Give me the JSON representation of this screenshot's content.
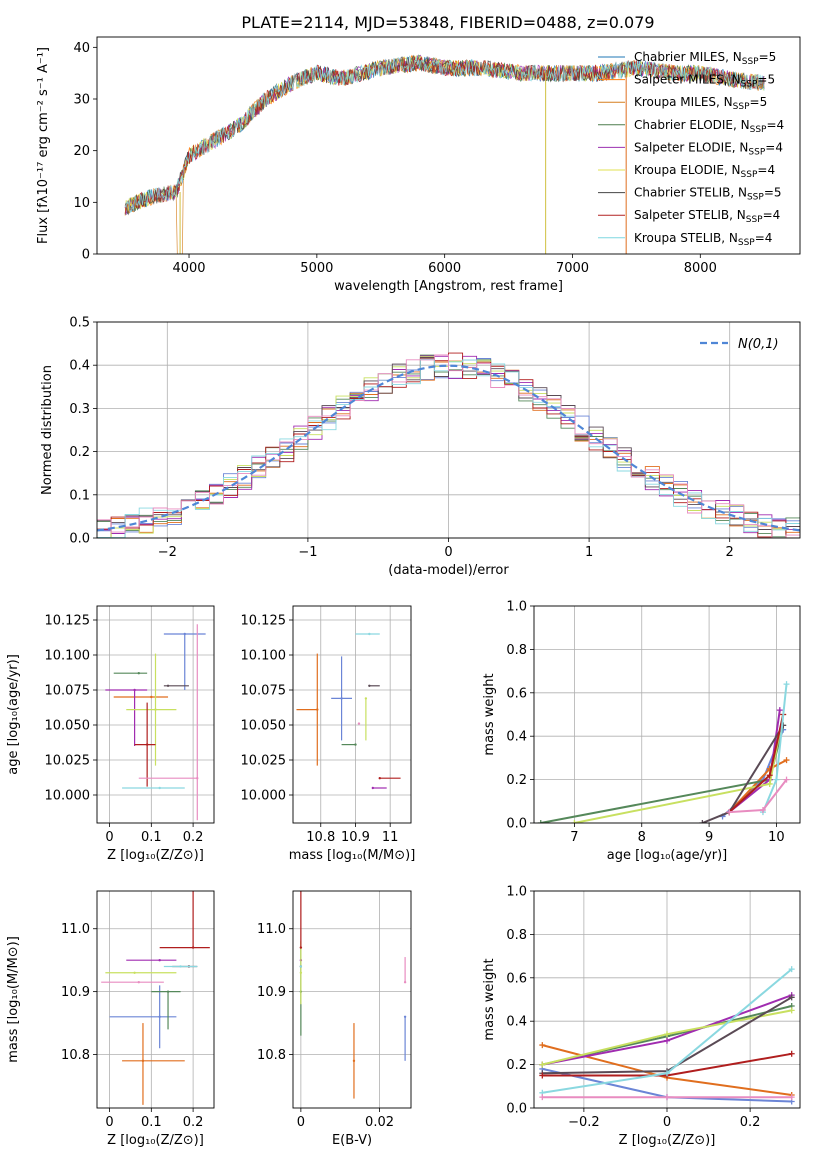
{
  "figure_title": "PLATE=2114, MJD=53848, FIBERID=0488, z=0.079",
  "model_names": [
    "Chabrier MILES",
    "Salpeter MILES",
    "Kroupa MILES",
    "Chabrier ELODIE",
    "Salpeter ELODIE",
    "Kroupa ELODIE",
    "Chabrier STELIB",
    "Salpeter STELIB",
    "Kroupa STELIB"
  ],
  "model_nssp": [
    5,
    5,
    5,
    4,
    4,
    4,
    5,
    4,
    4
  ],
  "model_colors": [
    "#1f77b4",
    "#ff7f0e",
    "#d67f1e",
    "#4d7d4d",
    "#9b30b0",
    "#e0e050",
    "#444444",
    "#b22222",
    "#7fd7e0"
  ],
  "panel_colors": [
    "#6b85d6",
    "#e06e1e",
    "#55885a",
    "#a02cb0",
    "#c8e060",
    "#5a4a55",
    "#b01e1e",
    "#8ad8e0",
    "#e88cc0"
  ],
  "chart_data": [
    {
      "id": "spectrum",
      "type": "line",
      "title": "PLATE=2114, MJD=53848, FIBERID=0488, z=0.079",
      "xlabel": "wavelength [Angstrom, rest frame]",
      "ylabel": "Flux [fλ10⁻¹⁷ erg cm⁻² s⁻¹ A⁻¹]",
      "xlim": [
        3280,
        8780
      ],
      "ylim": [
        0,
        42
      ],
      "xticks": [
        4000,
        5000,
        6000,
        7000,
        8000
      ],
      "yticks": [
        0,
        10,
        20,
        30,
        40
      ],
      "legend": "top-right",
      "continuum": [
        [
          3500,
          9
        ],
        [
          3700,
          11
        ],
        [
          3900,
          12
        ],
        [
          4000,
          19
        ],
        [
          4200,
          22
        ],
        [
          4400,
          25
        ],
        [
          4600,
          30
        ],
        [
          4800,
          33
        ],
        [
          5000,
          35
        ],
        [
          5200,
          34
        ],
        [
          5500,
          36
        ],
        [
          5800,
          37
        ],
        [
          6000,
          36
        ],
        [
          6300,
          36
        ],
        [
          6600,
          35
        ],
        [
          6800,
          35
        ],
        [
          7000,
          35
        ],
        [
          7200,
          35
        ],
        [
          7500,
          36
        ],
        [
          7800,
          35
        ],
        [
          8000,
          35
        ],
        [
          8200,
          34
        ],
        [
          8500,
          33
        ]
      ]
    },
    {
      "id": "residuals",
      "type": "histogram",
      "xlabel": "(data-model)/error",
      "ylabel": "Normed distribution",
      "xlim": [
        -2.5,
        2.5
      ],
      "ylim": [
        0,
        0.5
      ],
      "xticks": [
        -2,
        -1,
        0,
        1,
        2
      ],
      "yticks": [
        0.0,
        0.1,
        0.2,
        0.3,
        0.4,
        0.5
      ],
      "grid": true,
      "legend": "top-right",
      "legend_label": "N(0,1)",
      "bin_width": 0.1,
      "reference_curve": "gaussian mean 0 sigma 1"
    },
    {
      "id": "age_vs_Z",
      "type": "scatter",
      "xlabel": "Z [log₁₀(Z/Z⊙)]",
      "ylabel": "age  [log₁₀(age/yr)]",
      "xlim": [
        -0.03,
        0.25
      ],
      "ylim": [
        9.98,
        10.135
      ],
      "xticks": [
        0.0,
        0.1,
        0.2
      ],
      "yticks": [
        10.0,
        10.025,
        10.05,
        10.075,
        10.1,
        10.125
      ],
      "grid": true,
      "points": [
        {
          "x": 0.18,
          "y": 10.115,
          "xerr": [
            0.05,
            0.05
          ],
          "yerr": [
            0.04,
            0.0
          ]
        },
        {
          "x": 0.1,
          "y": 10.07,
          "xerr": [
            0.09,
            0.04
          ],
          "yerr": [
            0.0,
            0.0
          ]
        },
        {
          "x": 0.07,
          "y": 10.087,
          "xerr": [
            0.06,
            0.02
          ],
          "yerr": [
            0.0,
            0.0
          ]
        },
        {
          "x": 0.06,
          "y": 10.075,
          "xerr": [
            0.07,
            0.03
          ],
          "yerr": [
            0.04,
            0.0
          ]
        },
        {
          "x": 0.11,
          "y": 10.061,
          "xerr": [
            0.07,
            0.05
          ],
          "yerr": [
            0.04,
            0.04
          ]
        },
        {
          "x": 0.14,
          "y": 10.078,
          "xerr": [
            0.01,
            0.05
          ],
          "yerr": [
            0.0,
            0.0
          ]
        },
        {
          "x": 0.09,
          "y": 10.036,
          "xerr": [
            0.03,
            0.02
          ],
          "yerr": [
            0.03,
            0.03
          ]
        },
        {
          "x": 0.12,
          "y": 10.005,
          "xerr": [
            0.09,
            0.06
          ],
          "yerr": [
            0.0,
            0.0
          ]
        },
        {
          "x": 0.21,
          "y": 10.012,
          "xerr": [
            0.14,
            0.0
          ],
          "yerr": [
            0.03,
            0.11
          ]
        }
      ]
    },
    {
      "id": "age_vs_mass",
      "type": "scatter",
      "xlabel": "mass [log₁₀(M/M⊙)]",
      "ylabel": "",
      "xlim": [
        10.72,
        11.06
      ],
      "ylim": [
        9.98,
        10.135
      ],
      "xticks": [
        10.8,
        10.9,
        11.0
      ],
      "yticks": [
        10.0,
        10.025,
        10.05,
        10.075,
        10.1,
        10.125
      ],
      "grid": true,
      "points": [
        {
          "x": 10.86,
          "y": 10.069,
          "xerr": [
            0.03,
            0.03
          ],
          "yerr": [
            0.03,
            0.03
          ]
        },
        {
          "x": 10.79,
          "y": 10.061,
          "xerr": [
            0.06,
            0.0
          ],
          "yerr": [
            0.04,
            0.04
          ]
        },
        {
          "x": 10.9,
          "y": 10.036,
          "xerr": [
            0.04,
            0.0
          ],
          "yerr": [
            0.0,
            0.0
          ]
        },
        {
          "x": 10.95,
          "y": 10.005,
          "xerr": [
            0.0,
            0.04
          ],
          "yerr": [
            0.0,
            0.0
          ]
        },
        {
          "x": 10.93,
          "y": 10.069,
          "xerr": [
            0.0,
            0.0
          ],
          "yerr": [
            0.03,
            0.0
          ]
        },
        {
          "x": 10.94,
          "y": 10.078,
          "xerr": [
            0.0,
            0.03
          ],
          "yerr": [
            0.0,
            0.0
          ]
        },
        {
          "x": 10.97,
          "y": 10.012,
          "xerr": [
            0.0,
            0.06
          ],
          "yerr": [
            0.0,
            0.0
          ]
        },
        {
          "x": 10.94,
          "y": 10.115,
          "xerr": [
            0.04,
            0.03
          ],
          "yerr": [
            0.0,
            0.0
          ]
        },
        {
          "x": 10.91,
          "y": 10.051,
          "xerr": [
            0.0,
            0.0
          ],
          "yerr": [
            0.0,
            0.0
          ]
        }
      ]
    },
    {
      "id": "mass_weight_vs_age",
      "type": "line",
      "xlabel": "age  [log₁₀(age/yr)]",
      "ylabel": "mass weight",
      "xlim": [
        6.4,
        10.35
      ],
      "ylim": [
        0,
        1
      ],
      "xticks": [
        7,
        8,
        9,
        10
      ],
      "yticks": [
        0.0,
        0.2,
        0.4,
        0.6,
        0.8,
        1.0
      ],
      "grid": true,
      "series": [
        {
          "x": [
            9.2,
            9.8,
            10.1
          ],
          "y": [
            0.03,
            0.2,
            0.43
          ]
        },
        {
          "x": [
            9.3,
            9.9,
            10.15
          ],
          "y": [
            0.05,
            0.25,
            0.29
          ]
        },
        {
          "x": [
            6.5,
            9.9,
            10.1
          ],
          "y": [
            0.0,
            0.2,
            0.45
          ]
        },
        {
          "x": [
            9.3,
            9.9,
            10.05
          ],
          "y": [
            0.05,
            0.2,
            0.52
          ]
        },
        {
          "x": [
            7.0,
            9.9,
            10.1
          ],
          "y": [
            0.0,
            0.18,
            0.5
          ]
        },
        {
          "x": [
            8.9,
            9.3,
            10.1
          ],
          "y": [
            0.0,
            0.05,
            0.45
          ]
        },
        {
          "x": [
            9.3,
            9.9,
            10.1
          ],
          "y": [
            0.05,
            0.22,
            0.5
          ]
        },
        {
          "x": [
            9.8,
            10.0,
            10.15
          ],
          "y": [
            0.05,
            0.2,
            0.64
          ]
        },
        {
          "x": [
            9.3,
            9.8,
            10.15
          ],
          "y": [
            0.05,
            0.06,
            0.2
          ]
        }
      ]
    },
    {
      "id": "mass_vs_Z",
      "type": "scatter",
      "xlabel": "Z [log₁₀(Z/Z⊙)]",
      "ylabel": "mass [log₁₀(M/M⊙)]",
      "xlim": [
        -0.03,
        0.25
      ],
      "ylim": [
        10.715,
        11.06
      ],
      "xticks": [
        0.0,
        0.1,
        0.2
      ],
      "yticks": [
        10.8,
        10.9,
        11.0
      ],
      "grid": true,
      "points": [
        {
          "x": 0.12,
          "y": 10.86,
          "xerr": [
            0.12,
            0.04
          ],
          "yerr": [
            0.05,
            0.05
          ]
        },
        {
          "x": 0.08,
          "y": 10.79,
          "xerr": [
            0.05,
            0.1
          ],
          "yerr": [
            0.07,
            0.06
          ]
        },
        {
          "x": 0.14,
          "y": 10.9,
          "xerr": [
            0.04,
            0.03
          ],
          "yerr": [
            0.06,
            0.0
          ]
        },
        {
          "x": 0.12,
          "y": 10.95,
          "xerr": [
            0.08,
            0.04
          ],
          "yerr": [
            0.0,
            0.0
          ]
        },
        {
          "x": 0.06,
          "y": 10.93,
          "xerr": [
            0.07,
            0.1
          ],
          "yerr": [
            0.0,
            0.0
          ]
        },
        {
          "x": 0.19,
          "y": 10.94,
          "xerr": [
            0.04,
            0.02
          ],
          "yerr": [
            0.0,
            0.0
          ]
        },
        {
          "x": 0.2,
          "y": 10.97,
          "xerr": [
            0.08,
            0.04
          ],
          "yerr": [
            0.0,
            0.09
          ]
        },
        {
          "x": 0.17,
          "y": 10.94,
          "xerr": [
            0.04,
            0.04
          ],
          "yerr": [
            0.0,
            0.0
          ]
        },
        {
          "x": 0.07,
          "y": 10.915,
          "xerr": [
            0.09,
            0.06
          ],
          "yerr": [
            0.0,
            0.0
          ]
        }
      ]
    },
    {
      "id": "mass_vs_EBV",
      "type": "scatter",
      "xlabel": "E(B-V)",
      "ylabel": "",
      "xlim": [
        -0.002,
        0.028
      ],
      "ylim": [
        10.715,
        11.06
      ],
      "xticks": [
        0.0,
        0.02
      ],
      "yticks": [
        10.8,
        10.9,
        11.0
      ],
      "grid": true,
      "points": [
        {
          "x": 0.0265,
          "y": 10.86,
          "xerr": [
            0,
            0
          ],
          "yerr": [
            0.07,
            0.0
          ]
        },
        {
          "x": 0.0135,
          "y": 10.79,
          "xerr": [
            0,
            0
          ],
          "yerr": [
            0.06,
            0.06
          ]
        },
        {
          "x": 0.0,
          "y": 10.9,
          "xerr": [
            0,
            0
          ],
          "yerr": [
            0.07,
            0.07
          ]
        },
        {
          "x": 0.0,
          "y": 10.95,
          "xerr": [
            0,
            0
          ],
          "yerr": [
            0.0,
            0.0
          ]
        },
        {
          "x": 0.0,
          "y": 10.93,
          "xerr": [
            0,
            0
          ],
          "yerr": [
            0.05,
            0.05
          ]
        },
        {
          "x": 0.0,
          "y": 10.94,
          "xerr": [
            0,
            0
          ],
          "yerr": [
            0.0,
            0.0
          ]
        },
        {
          "x": 0.0,
          "y": 10.97,
          "xerr": [
            0,
            0
          ],
          "yerr": [
            0.0,
            0.09
          ]
        },
        {
          "x": 0.0,
          "y": 10.94,
          "xerr": [
            0,
            0
          ],
          "yerr": [
            0.0,
            0.0
          ]
        },
        {
          "x": 0.0265,
          "y": 10.915,
          "xerr": [
            0,
            0
          ],
          "yerr": [
            0.0,
            0.04
          ]
        }
      ]
    },
    {
      "id": "mass_weight_vs_Z",
      "type": "line",
      "xlabel": "Z [log₁₀(Z/Z⊙)]",
      "ylabel": "mass weight",
      "xlim": [
        -0.32,
        0.32
      ],
      "ylim": [
        0,
        1
      ],
      "xticks": [
        -0.2,
        0.0,
        0.2
      ],
      "yticks": [
        0.0,
        0.2,
        0.4,
        0.6,
        0.8,
        1.0
      ],
      "grid": true,
      "series": [
        {
          "x": [
            -0.3,
            0.0,
            0.3
          ],
          "y": [
            0.18,
            0.05,
            0.03
          ]
        },
        {
          "x": [
            -0.3,
            0.0,
            0.3
          ],
          "y": [
            0.29,
            0.14,
            0.06
          ]
        },
        {
          "x": [
            -0.3,
            0.0,
            0.3
          ],
          "y": [
            0.2,
            0.33,
            0.47
          ]
        },
        {
          "x": [
            -0.3,
            0.0,
            0.3
          ],
          "y": [
            0.2,
            0.31,
            0.52
          ]
        },
        {
          "x": [
            -0.3,
            0.0,
            0.3
          ],
          "y": [
            0.2,
            0.34,
            0.45
          ]
        },
        {
          "x": [
            -0.3,
            0.0,
            0.3
          ],
          "y": [
            0.16,
            0.17,
            0.51
          ]
        },
        {
          "x": [
            -0.3,
            0.0,
            0.3
          ],
          "y": [
            0.15,
            0.15,
            0.25
          ]
        },
        {
          "x": [
            -0.3,
            0.0,
            0.3
          ],
          "y": [
            0.07,
            0.16,
            0.64
          ]
        },
        {
          "x": [
            -0.3,
            0.0,
            0.3
          ],
          "y": [
            0.05,
            0.05,
            0.05
          ]
        }
      ]
    }
  ]
}
